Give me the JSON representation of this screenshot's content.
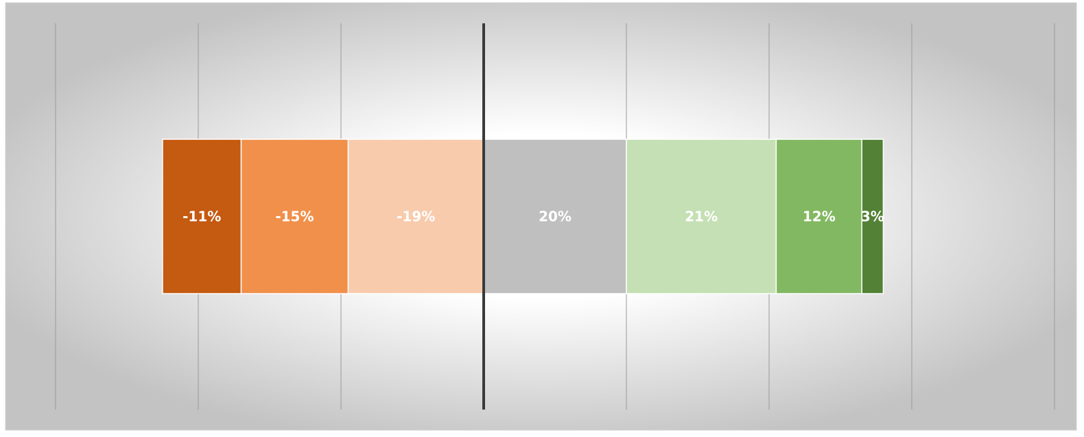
{
  "chart_data": {
    "type": "bar",
    "orientation": "horizontal",
    "stacked": true,
    "diverging": true,
    "categories": [
      ""
    ],
    "series": [
      {
        "value": -11,
        "label": "-11%",
        "color": "#C55A11"
      },
      {
        "value": -15,
        "label": "-15%",
        "color": "#F0904B"
      },
      {
        "value": -19,
        "label": "-19%",
        "color": "#F8CBAD"
      },
      {
        "value": 20,
        "label": "20%",
        "color": "#BFBFBF"
      },
      {
        "value": 21,
        "label": "21%",
        "color": "#C5E0B4"
      },
      {
        "value": 12,
        "label": "12%",
        "color": "#82B862"
      },
      {
        "value": 3,
        "label": "3%",
        "color": "#538135"
      }
    ],
    "xlim": [
      -60,
      80
    ],
    "x_gridlines": [
      -60,
      -40,
      -20,
      20,
      40,
      60,
      80
    ],
    "zero_line": true,
    "grid": true,
    "legend": "none",
    "title": "",
    "xlabel": "",
    "ylabel": ""
  },
  "colors": {
    "plot_background_center": "#FFFFFF",
    "plot_background_edge": "#C3C3C3",
    "gridline": "#9A9A9A",
    "zero_line": "#3A3A3A",
    "label_text": "#FFFFFF"
  }
}
